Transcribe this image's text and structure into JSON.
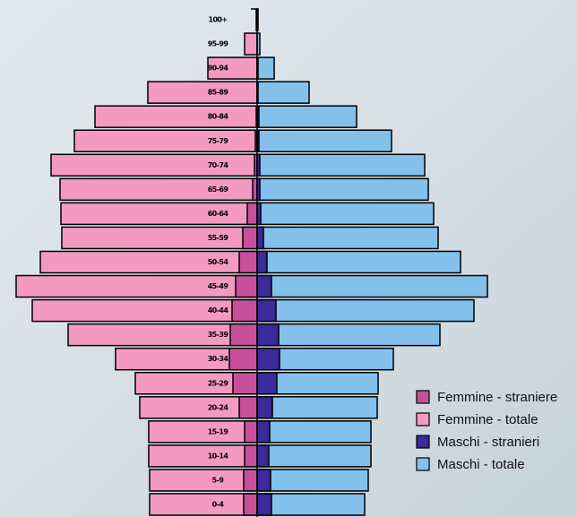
{
  "chart_data": {
    "type": "pyramid",
    "categories": [
      "100+",
      "95-99",
      "90-94",
      "85-89",
      "80-84",
      "75-79",
      "70-74",
      "65-69",
      "60-64",
      "55-59",
      "50-54",
      "45-49",
      "40-44",
      "35-39",
      "30-34",
      "25-29",
      "20-24",
      "15-19",
      "10-14",
      "5-9",
      "0-4"
    ],
    "series": [
      {
        "name": "Femmine - straniere",
        "color": "#c8509a",
        "side": "left",
        "values": [
          0,
          0,
          0,
          0,
          1,
          2,
          3,
          5,
          11,
          16,
          20,
          24,
          28,
          30,
          31,
          27,
          20,
          14,
          14,
          15,
          15
        ]
      },
      {
        "name": "Femmine - totale",
        "color": "#f49ac1",
        "side": "left",
        "values": [
          1,
          14,
          55,
          122,
          181,
          204,
          230,
          220,
          219,
          218,
          242,
          269,
          251,
          211,
          158,
          136,
          131,
          121,
          121,
          120,
          120
        ]
      },
      {
        "name": "Maschi - stranieri",
        "color": "#3b2a98",
        "side": "right",
        "values": [
          0,
          0,
          1,
          1,
          2,
          2,
          3,
          3,
          4,
          7,
          11,
          16,
          21,
          24,
          25,
          22,
          17,
          14,
          13,
          15,
          16
        ]
      },
      {
        "name": "Maschi - totale",
        "color": "#84c0ec",
        "side": "right",
        "values": [
          1,
          3,
          19,
          58,
          111,
          150,
          187,
          191,
          197,
          202,
          227,
          257,
          242,
          204,
          152,
          135,
          134,
          127,
          127,
          124,
          120
        ]
      }
    ]
  }
}
